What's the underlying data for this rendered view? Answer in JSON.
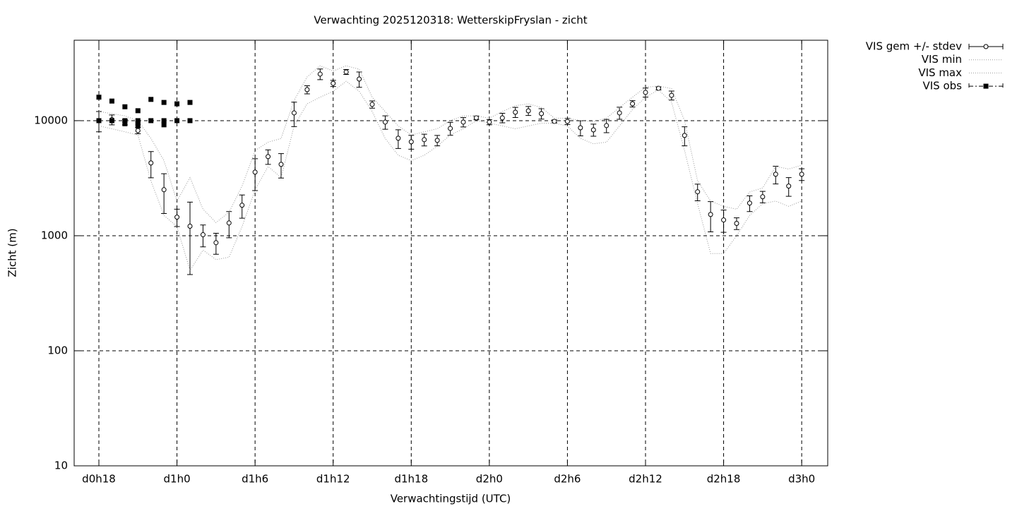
{
  "chart_data": {
    "type": "errorbar-line",
    "title": "Verwachting 2025120318: WetterskipFryslan - zicht",
    "xlabel": "Verwachtingstijd (UTC)",
    "ylabel": "Zicht (m)",
    "log_y": true,
    "grid": true,
    "legend": "outside-upper-right",
    "xlim": [
      16.1,
      74
    ],
    "ylim": [
      10,
      50000
    ],
    "xticks": [
      {
        "value": 18,
        "label": "d0h18"
      },
      {
        "value": 24,
        "label": "d1h0"
      },
      {
        "value": 30,
        "label": "d1h6"
      },
      {
        "value": 36,
        "label": "d1h12"
      },
      {
        "value": 42,
        "label": "d1h18"
      },
      {
        "value": 48,
        "label": "d2h0"
      },
      {
        "value": 54,
        "label": "d2h6"
      },
      {
        "value": 60,
        "label": "d2h12"
      },
      {
        "value": 66,
        "label": "d2h18"
      },
      {
        "value": 72,
        "label": "d3h0"
      }
    ],
    "yticks": [
      10,
      100,
      1000,
      10000
    ],
    "x": [
      18,
      19,
      20,
      21,
      22,
      23,
      24,
      25,
      26,
      27,
      28,
      29,
      30,
      31,
      32,
      33,
      34,
      35,
      36,
      37,
      38,
      39,
      40,
      41,
      42,
      43,
      44,
      45,
      46,
      47,
      48,
      49,
      50,
      51,
      52,
      53,
      54,
      55,
      56,
      57,
      58,
      59,
      60,
      61,
      62,
      63,
      64,
      65,
      66,
      67,
      68,
      69,
      70,
      71,
      72
    ],
    "series": [
      {
        "name": "VIS gem +/- stdev",
        "style": "errorbars",
        "color": "#000000",
        "values": [
          10000,
          10200,
          9700,
          8200,
          4290,
          2510,
          1450,
          1210,
          1020,
          870,
          1290,
          1840,
          3570,
          4870,
          4170,
          11680,
          18600,
          25400,
          21100,
          26500,
          23000,
          13840,
          9720,
          7030,
          6550,
          6830,
          6740,
          8560,
          9720,
          10580,
          9720,
          10580,
          11840,
          12180,
          11510,
          9860,
          9860,
          8680,
          8320,
          9060,
          11680,
          14030,
          17600,
          19100,
          16600,
          7440,
          2410,
          1530,
          1370,
          1280,
          1920,
          2180,
          3420,
          2700,
          3420
        ],
        "stdev": [
          2000,
          1000,
          500,
          500,
          1100,
          950,
          250,
          750,
          220,
          180,
          330,
          420,
          1100,
          700,
          1000,
          2800,
          1500,
          2700,
          1300,
          1300,
          3500,
          1000,
          1300,
          1300,
          900,
          800,
          700,
          1100,
          900,
          400,
          500,
          1000,
          1200,
          1100,
          1200,
          300,
          600,
          1300,
          1000,
          1200,
          1400,
          900,
          1600,
          600,
          1500,
          1400,
          400,
          450,
          300,
          150,
          300,
          250,
          600,
          500,
          400
        ]
      },
      {
        "name": "VIS min",
        "style": "dotted",
        "color": "#999999",
        "values": [
          9000,
          8500,
          8000,
          7500,
          3000,
          1500,
          1200,
          500,
          750,
          620,
          650,
          1200,
          2500,
          4000,
          3200,
          9000,
          14000,
          16000,
          18000,
          22000,
          18000,
          12000,
          7000,
          5000,
          4500,
          5000,
          6000,
          7500,
          8500,
          10000,
          9500,
          9000,
          8500,
          9000,
          9500,
          9500,
          9000,
          7000,
          6300,
          6500,
          9000,
          12500,
          16000,
          18500,
          14500,
          5500,
          1900,
          700,
          700,
          1000,
          1500,
          1900,
          2000,
          1800,
          2000
        ]
      },
      {
        "name": "VIS max",
        "style": "dotted",
        "color": "#999999",
        "values": [
          12000,
          11500,
          11000,
          10000,
          7000,
          4500,
          2000,
          3200,
          1700,
          1300,
          1600,
          2700,
          5500,
          6500,
          7000,
          15000,
          24000,
          30000,
          27000,
          30000,
          28000,
          16000,
          12000,
          9000,
          7500,
          8000,
          8500,
          10000,
          11000,
          11000,
          10500,
          12000,
          13500,
          14000,
          13000,
          10500,
          10500,
          10000,
          9800,
          10500,
          13000,
          16000,
          19500,
          20000,
          19000,
          10000,
          3000,
          2000,
          1800,
          1700,
          2400,
          2600,
          4000,
          3800,
          4100
        ]
      },
      {
        "name": "VIS obs",
        "style": "points",
        "color": "#000000",
        "x": [
          18,
          18,
          19,
          19,
          20,
          20,
          20,
          21,
          21,
          21,
          21,
          22,
          22,
          23,
          23,
          23,
          24,
          24,
          25,
          25
        ],
        "values": [
          16000,
          10000,
          14800,
          10000,
          13200,
          10000,
          9400,
          12200,
          10000,
          9500,
          9000,
          15300,
          10000,
          14400,
          10000,
          9200,
          14000,
          10000,
          14400,
          10000
        ]
      }
    ]
  }
}
